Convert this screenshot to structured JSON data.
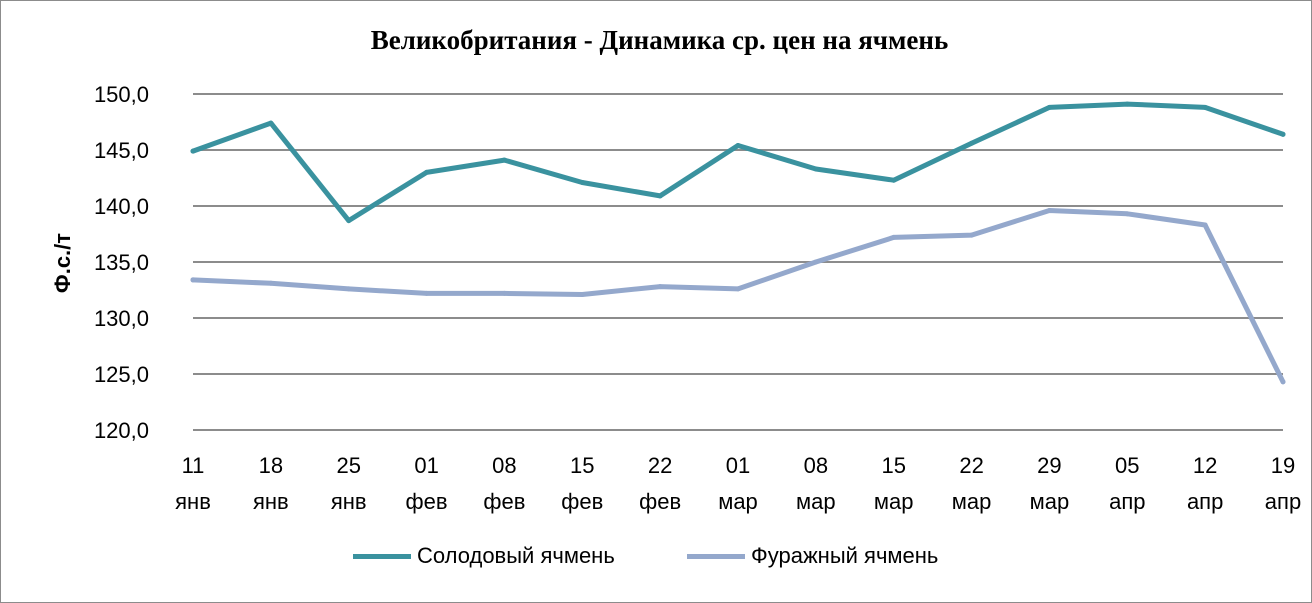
{
  "chart_data": {
    "type": "line",
    "title": "Великобритания - Динамика  ср. цен на ячмень",
    "ylabel": "Ф.с./т",
    "xlabel": "",
    "ylim": [
      120,
      150
    ],
    "yticks": [
      "150,0",
      "145,0",
      "140,0",
      "135,0",
      "130,0",
      "125,0",
      "120,0"
    ],
    "categories": [
      [
        "11",
        "янв"
      ],
      [
        "18",
        "янв"
      ],
      [
        "25",
        "янв"
      ],
      [
        "01",
        "фев"
      ],
      [
        "08",
        "фев"
      ],
      [
        "15",
        "фев"
      ],
      [
        "22",
        "фев"
      ],
      [
        "01",
        "мар"
      ],
      [
        "08",
        "мар"
      ],
      [
        "15",
        "мар"
      ],
      [
        "22",
        "мар"
      ],
      [
        "29",
        "мар"
      ],
      [
        "05",
        "апр"
      ],
      [
        "12",
        "апр"
      ],
      [
        "19",
        "апр"
      ]
    ],
    "series": [
      {
        "name": "Солодовый ячмень",
        "color": "#3a929f",
        "values": [
          144.9,
          147.4,
          138.7,
          143.0,
          144.1,
          142.1,
          140.9,
          145.4,
          143.3,
          142.3,
          145.6,
          148.8,
          149.1,
          148.8,
          146.4
        ]
      },
      {
        "name": "Фуражный ячмень",
        "color": "#94a8cc",
        "values": [
          133.4,
          133.1,
          132.6,
          132.2,
          132.2,
          132.1,
          132.8,
          132.6,
          135.0,
          137.2,
          137.4,
          139.6,
          139.3,
          138.3,
          124.3
        ]
      }
    ],
    "grid": true,
    "legend_position": "bottom"
  }
}
